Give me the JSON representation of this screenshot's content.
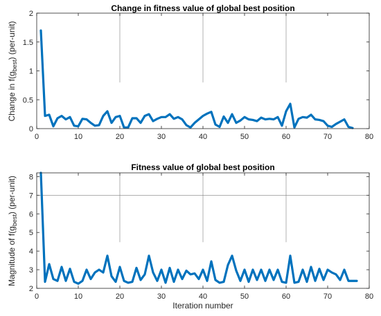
{
  "colors": {
    "series": "#0072BD",
    "axis": "#262626",
    "grid": "#808080",
    "background": "#ffffff"
  },
  "chart_data": [
    {
      "type": "line",
      "title": "Change in fitness value of global best position",
      "ylabel": {
        "prefix": "Change in f(g",
        "subscript": "best",
        "suffix": ") (per-unit)"
      },
      "xlabel": "",
      "xlim": [
        0,
        80
      ],
      "ylim": [
        0,
        2
      ],
      "xticks": [
        "0",
        "10",
        "20",
        "30",
        "40",
        "50",
        "60",
        "70",
        "80"
      ],
      "yticks": [
        "0",
        "0.5",
        "1",
        "1.5",
        "2"
      ],
      "grid_x": [
        20,
        40,
        60
      ],
      "grid_y": [],
      "series": [
        {
          "x": [
            1,
            2,
            3,
            4,
            5,
            6,
            7,
            8,
            9,
            10,
            11,
            12,
            13,
            14,
            15,
            16,
            17,
            18,
            19,
            20,
            21,
            22,
            23,
            24,
            25,
            26,
            27,
            28,
            29,
            30,
            31,
            32,
            33,
            34,
            35,
            36,
            37,
            38,
            39,
            40,
            41,
            42,
            43,
            44,
            45,
            46,
            47,
            48,
            49,
            50,
            51,
            52,
            53,
            54,
            55,
            56,
            57,
            58,
            59,
            60,
            61,
            62,
            63,
            64,
            65,
            66,
            67,
            68,
            69,
            70,
            71,
            72,
            73,
            74,
            75,
            76
          ],
          "values": [
            1.7,
            0.22,
            0.24,
            0.04,
            0.18,
            0.22,
            0.16,
            0.2,
            0.05,
            0.04,
            0.17,
            0.16,
            0.1,
            0.05,
            0.06,
            0.22,
            0.3,
            0.1,
            0.2,
            0.22,
            0.02,
            0.02,
            0.18,
            0.18,
            0.1,
            0.22,
            0.25,
            0.13,
            0.17,
            0.2,
            0.2,
            0.25,
            0.17,
            0.2,
            0.16,
            0.06,
            0.02,
            0.1,
            0.16,
            0.22,
            0.26,
            0.29,
            0.07,
            0.03,
            0.21,
            0.1,
            0.25,
            0.1,
            0.14,
            0.2,
            0.16,
            0.15,
            0.13,
            0.19,
            0.16,
            0.17,
            0.16,
            0.2,
            0.05,
            0.3,
            0.43,
            0.02,
            0.17,
            0.2,
            0.19,
            0.24,
            0.16,
            0.15,
            0.13,
            0.05,
            0.03,
            0.08,
            0.12,
            0.16,
            0.03,
            0.01
          ]
        }
      ]
    },
    {
      "type": "line",
      "title": "Fitness value of global best position",
      "ylabel": {
        "prefix": "Magnitude of f(g",
        "subscript": "best",
        "suffix": ") (per-unit)"
      },
      "xlabel": "Iteration number",
      "xlim": [
        0,
        80
      ],
      "ylim": [
        2,
        8.2
      ],
      "xticks": [
        "0",
        "10",
        "20",
        "30",
        "40",
        "50",
        "60",
        "70",
        "80"
      ],
      "yticks": [
        "2",
        "3",
        "4",
        "5",
        "6",
        "7",
        "8"
      ],
      "grid_x": [
        20,
        40,
        60
      ],
      "grid_y": [
        7
      ],
      "series": [
        {
          "x": [
            1,
            2,
            3,
            4,
            5,
            6,
            7,
            8,
            9,
            10,
            11,
            12,
            13,
            14,
            15,
            16,
            17,
            18,
            19,
            20,
            21,
            22,
            23,
            24,
            25,
            26,
            27,
            28,
            29,
            30,
            31,
            32,
            33,
            34,
            35,
            36,
            37,
            38,
            39,
            40,
            41,
            42,
            43,
            44,
            45,
            46,
            47,
            48,
            49,
            50,
            51,
            52,
            53,
            54,
            55,
            56,
            57,
            58,
            59,
            60,
            61,
            62,
            63,
            64,
            65,
            66,
            67,
            68,
            69,
            70,
            71,
            72,
            73,
            74,
            75,
            76,
            77
          ],
          "values": [
            8.2,
            2.35,
            3.3,
            2.5,
            2.4,
            3.15,
            2.4,
            3.05,
            2.35,
            2.25,
            2.4,
            3.0,
            2.5,
            2.85,
            3.0,
            2.85,
            3.75,
            2.65,
            2.35,
            3.15,
            2.4,
            2.3,
            2.35,
            3.1,
            2.45,
            2.75,
            3.75,
            2.85,
            2.4,
            3.0,
            2.3,
            3.1,
            2.35,
            3.0,
            2.5,
            2.95,
            2.75,
            2.8,
            2.5,
            3.0,
            2.4,
            3.45,
            2.45,
            2.3,
            2.35,
            3.25,
            3.75,
            2.95,
            2.4,
            3.0,
            2.35,
            3.0,
            2.45,
            3.0,
            2.4,
            3.0,
            2.45,
            3.0,
            2.35,
            2.3,
            3.75,
            2.3,
            2.35,
            3.0,
            2.35,
            3.15,
            2.4,
            3.05,
            2.45,
            3.0,
            2.85,
            2.75,
            2.45,
            3.0,
            2.4,
            2.4,
            2.4
          ]
        }
      ]
    }
  ]
}
